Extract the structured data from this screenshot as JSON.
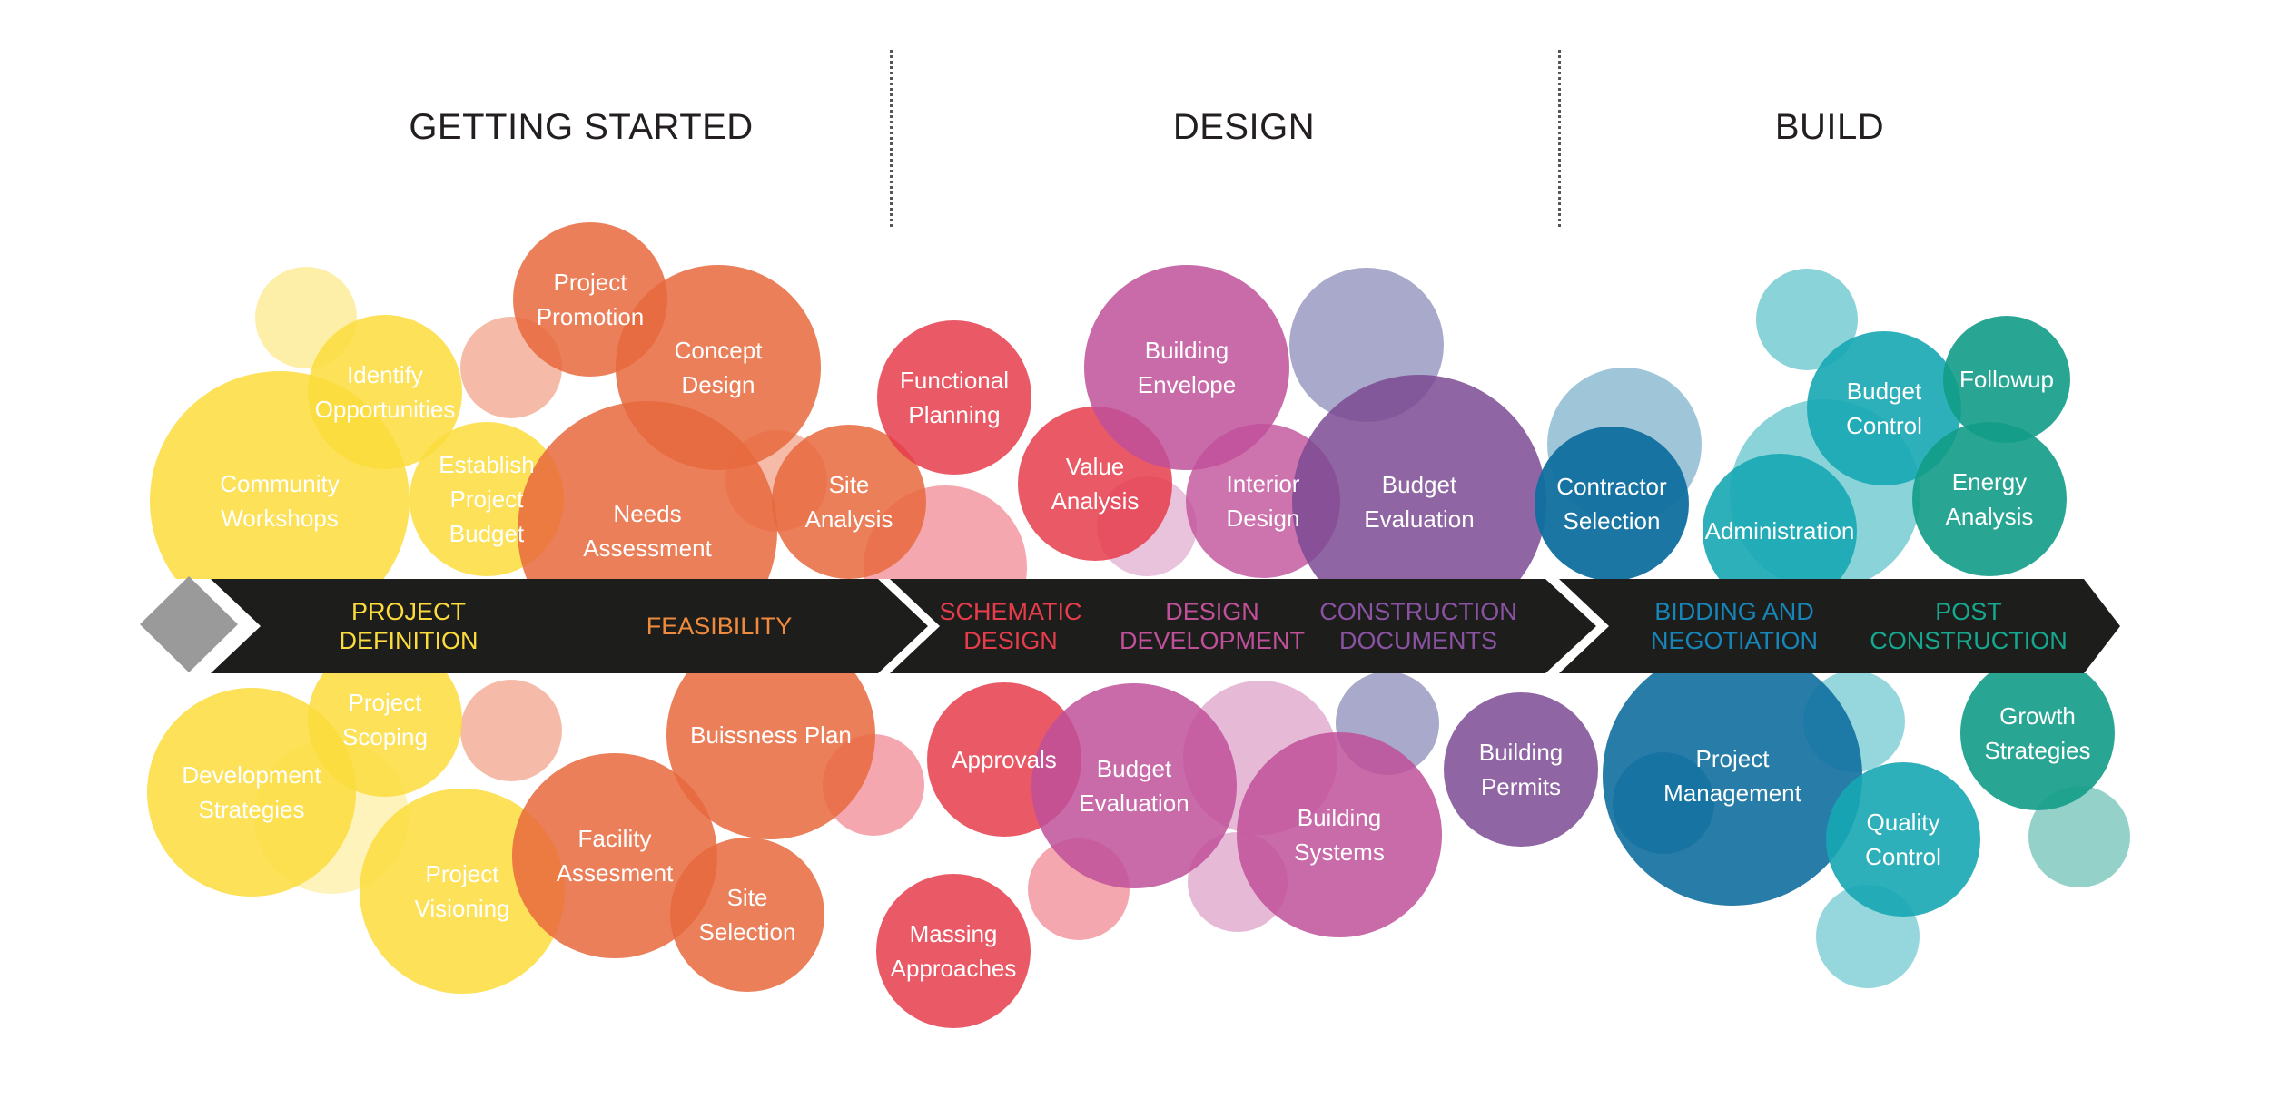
{
  "phases": [
    {
      "title": "GETTING STARTED"
    },
    {
      "title": "DESIGN"
    },
    {
      "title": "BUILD"
    }
  ],
  "colors": {
    "yellow": "#fbdc3c",
    "orange": "#e8683d",
    "red": "#e63c4b",
    "magenta": "#c0509a",
    "purple": "#7b4a93",
    "lavender": "#9a9ac2",
    "blue": "#0f6f9f",
    "teal": "#16a7b3",
    "green": "#129c87",
    "band": "#1d1d1b",
    "diamond": "#9a9a9a"
  },
  "stages": [
    {
      "label": "PROJECT\nDEFINITION",
      "color": "#fbdc3c"
    },
    {
      "label": "FEASIBILITY",
      "color": "#f08a3c"
    },
    {
      "label": "SCHEMATIC\nDESIGN",
      "color": "#e63c4b"
    },
    {
      "label": "DESIGN\nDEVELOPMENT",
      "color": "#c0509a"
    },
    {
      "label": "CONSTRUCTION\nDOCUMENTS",
      "color": "#8a52a3"
    },
    {
      "label": "BIDDING AND\nNEGOTIATION",
      "color": "#1685b8"
    },
    {
      "label": "POST\nCONSTRUCTION",
      "color": "#15a88f"
    }
  ],
  "activities": [
    {
      "label": "Identify\nOpportunities",
      "group": "yellow"
    },
    {
      "label": "Community\nWorkshops",
      "group": "yellow"
    },
    {
      "label": "Establish\nProject\nBudget",
      "group": "yellow"
    },
    {
      "label": "Project\nPromotion",
      "group": "orange"
    },
    {
      "label": "Concept\nDesign",
      "group": "orange"
    },
    {
      "label": "Needs\nAssessment",
      "group": "orange"
    },
    {
      "label": "Site\nAnalysis",
      "group": "orange"
    },
    {
      "label": "Functional\nPlanning",
      "group": "red"
    },
    {
      "label": "Value\nAnalysis",
      "group": "red"
    },
    {
      "label": "Building\nEnvelope",
      "group": "magenta"
    },
    {
      "label": "Interior\nDesign",
      "group": "magenta"
    },
    {
      "label": "Budget\nEvaluation",
      "group": "purple"
    },
    {
      "label": "Contractor\nSelection",
      "group": "blue"
    },
    {
      "label": "Administration",
      "group": "teal"
    },
    {
      "label": "Budget\nControl",
      "group": "teal"
    },
    {
      "label": "Followup",
      "group": "green"
    },
    {
      "label": "Energy\nAnalysis",
      "group": "green"
    },
    {
      "label": "Project\nScoping",
      "group": "yellow"
    },
    {
      "label": "Development\nStrategies",
      "group": "yellow"
    },
    {
      "label": "Project\nVisioning",
      "group": "yellow"
    },
    {
      "label": "Buissness Plan",
      "group": "orange"
    },
    {
      "label": "Facility\nAssesment",
      "group": "orange"
    },
    {
      "label": "Site\nSelection",
      "group": "orange"
    },
    {
      "label": "Approvals",
      "group": "red"
    },
    {
      "label": "Massing\nApproaches",
      "group": "red"
    },
    {
      "label": "Budget\nEvaluation",
      "group": "magenta"
    },
    {
      "label": "Building\nSystems",
      "group": "magenta"
    },
    {
      "label": "Building\nPermits",
      "group": "purple"
    },
    {
      "label": "Project\nManagement",
      "group": "blue"
    },
    {
      "label": "Quality\nControl",
      "group": "teal"
    },
    {
      "label": "Growth\nStrategies",
      "group": "green"
    }
  ]
}
